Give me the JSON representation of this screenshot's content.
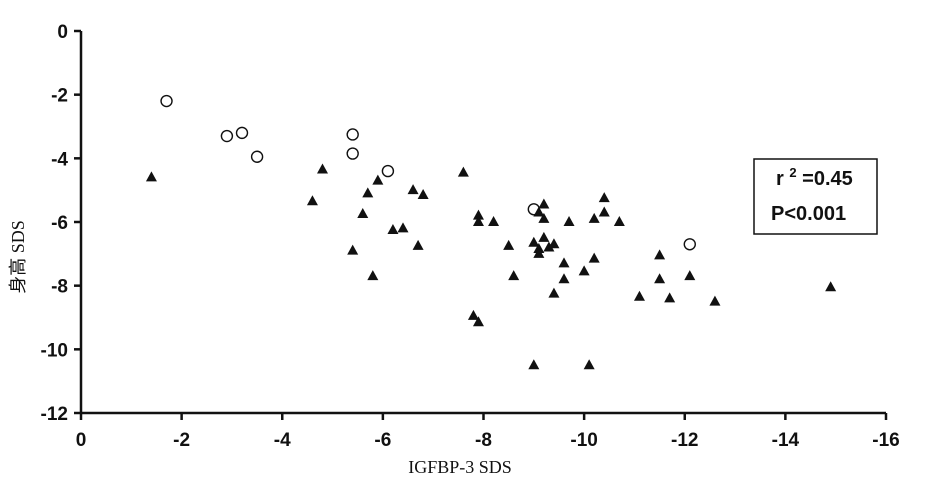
{
  "chart_data": {
    "type": "scatter",
    "xlabel": "IGFBP-3 SDS",
    "ylabel": "身高 SDS",
    "xlim": [
      0,
      -16
    ],
    "ylim": [
      -12,
      0
    ],
    "x_ticks": [
      "0",
      "-2",
      "-4",
      "-6",
      "-8",
      "-10",
      "-12",
      "-14",
      "-16"
    ],
    "y_ticks": [
      "0",
      "-2",
      "-4",
      "-6",
      "-8",
      "-10",
      "-12"
    ],
    "grid": false,
    "annotation": {
      "r_text": "r",
      "r_superscript": "2",
      "r_value": "=0.45",
      "p_text": "P<0.001"
    },
    "series": [
      {
        "marker": "open-circle",
        "color": "#111111",
        "points": [
          [
            -1.7,
            -2.2
          ],
          [
            -2.9,
            -3.3
          ],
          [
            -3.2,
            -3.2
          ],
          [
            -3.5,
            -3.95
          ],
          [
            -5.4,
            -3.25
          ],
          [
            -5.4,
            -3.85
          ],
          [
            -6.1,
            -4.4
          ],
          [
            -9.0,
            -5.6
          ],
          [
            -12.1,
            -6.7
          ]
        ]
      },
      {
        "marker": "filled-triangle",
        "color": "#111111",
        "points": [
          [
            -1.4,
            -4.6
          ],
          [
            -4.6,
            -5.35
          ],
          [
            -4.8,
            -4.35
          ],
          [
            -5.4,
            -6.9
          ],
          [
            -5.6,
            -5.75
          ],
          [
            -5.7,
            -5.1
          ],
          [
            -5.8,
            -7.7
          ],
          [
            -5.9,
            -4.7
          ],
          [
            -6.2,
            -6.25
          ],
          [
            -6.4,
            -6.2
          ],
          [
            -6.6,
            -5.0
          ],
          [
            -6.7,
            -6.75
          ],
          [
            -6.8,
            -5.15
          ],
          [
            -7.6,
            -4.45
          ],
          [
            -7.8,
            -8.95
          ],
          [
            -7.9,
            -9.15
          ],
          [
            -7.9,
            -5.8
          ],
          [
            -7.9,
            -6.0
          ],
          [
            -8.2,
            -6.0
          ],
          [
            -8.5,
            -6.75
          ],
          [
            -8.6,
            -7.7
          ],
          [
            -9.0,
            -10.5
          ],
          [
            -9.0,
            -6.65
          ],
          [
            -9.1,
            -5.7
          ],
          [
            -9.1,
            -6.85
          ],
          [
            -9.1,
            -7.0
          ],
          [
            -9.2,
            -6.5
          ],
          [
            -9.2,
            -5.9
          ],
          [
            -9.2,
            -5.45
          ],
          [
            -9.3,
            -6.8
          ],
          [
            -9.4,
            -6.7
          ],
          [
            -9.4,
            -8.25
          ],
          [
            -9.6,
            -7.8
          ],
          [
            -9.6,
            -7.3
          ],
          [
            -9.7,
            -6.0
          ],
          [
            -10.0,
            -7.55
          ],
          [
            -10.1,
            -10.5
          ],
          [
            -10.2,
            -5.9
          ],
          [
            -10.2,
            -7.15
          ],
          [
            -10.4,
            -5.25
          ],
          [
            -10.4,
            -5.7
          ],
          [
            -10.7,
            -6.0
          ],
          [
            -11.1,
            -8.35
          ],
          [
            -11.5,
            -7.05
          ],
          [
            -11.5,
            -7.8
          ],
          [
            -11.7,
            -8.4
          ],
          [
            -12.1,
            -7.7
          ],
          [
            -12.6,
            -8.5
          ],
          [
            -14.9,
            -8.05
          ]
        ]
      }
    ]
  }
}
